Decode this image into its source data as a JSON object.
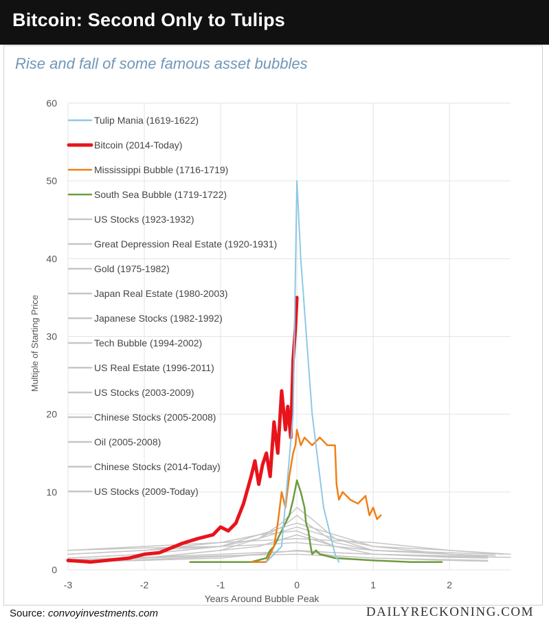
{
  "header": {
    "title": "Bitcoin: Second Only to Tulips"
  },
  "subtitle": "Rise and fall of some famous asset bubbles",
  "footer": {
    "source_label": "Source:",
    "source_value": "convoyinvestments.com",
    "brand": "DAILYRECKONING.COM"
  },
  "chart_data": {
    "type": "line",
    "title": "Bitcoin: Second Only to Tulips",
    "subtitle": "Rise and fall of some famous asset bubbles",
    "xlabel": "Years Around Bubble Peak",
    "ylabel": "Multiple of Starting Price",
    "xlim": [
      -3,
      2.8
    ],
    "ylim": [
      0,
      60
    ],
    "xticks": [
      -3,
      -2,
      -1,
      0,
      1,
      2
    ],
    "yticks": [
      0,
      10,
      20,
      30,
      40,
      50,
      60
    ],
    "grid": true,
    "legend_position": "top-left",
    "series": [
      {
        "name": "Tulip Mania (1619-1622)",
        "color": "#8ec8e6",
        "width": 2,
        "x": [
          -0.4,
          -0.2,
          -0.05,
          0.0,
          0.05,
          0.2,
          0.35,
          0.5,
          0.55
        ],
        "y": [
          1,
          3,
          20,
          50,
          40,
          20,
          8,
          2,
          1
        ]
      },
      {
        "name": "Bitcoin (2014-Today)",
        "color": "#e8141b",
        "width": 5,
        "x": [
          -3.0,
          -2.7,
          -2.4,
          -2.2,
          -2.0,
          -1.8,
          -1.6,
          -1.5,
          -1.3,
          -1.1,
          -1.0,
          -0.9,
          -0.8,
          -0.7,
          -0.6,
          -0.55,
          -0.5,
          -0.45,
          -0.4,
          -0.35,
          -0.3,
          -0.25,
          -0.2,
          -0.15,
          -0.12,
          -0.08,
          -0.05,
          -0.02,
          0.0
        ],
        "y": [
          1.2,
          1.0,
          1.3,
          1.5,
          2.0,
          2.2,
          3.0,
          3.4,
          4.0,
          4.5,
          5.5,
          5.0,
          6.0,
          8.5,
          12.0,
          14.0,
          11.0,
          13.5,
          15.0,
          12.0,
          19.0,
          15.0,
          23.0,
          18.0,
          21.0,
          17.0,
          27.0,
          31.0,
          35.0
        ]
      },
      {
        "name": "Mississippi Bubble (1716-1719)",
        "color": "#f07f17",
        "width": 2.5,
        "x": [
          -0.6,
          -0.4,
          -0.3,
          -0.25,
          -0.2,
          -0.15,
          -0.1,
          -0.05,
          -0.02,
          0.0,
          0.05,
          0.1,
          0.2,
          0.3,
          0.4,
          0.5,
          0.52,
          0.55,
          0.6,
          0.7,
          0.8,
          0.9,
          0.95,
          1.0,
          1.05,
          1.1
        ],
        "y": [
          1,
          1,
          3,
          6,
          10,
          8,
          12,
          15,
          16,
          18,
          16,
          17,
          16,
          17,
          16,
          16,
          11,
          9,
          10,
          9,
          8.5,
          9.5,
          7,
          8,
          6.5,
          7
        ]
      },
      {
        "name": "South Sea Bubble (1719-1722)",
        "color": "#6d9a3c",
        "width": 2.5,
        "x": [
          -1.4,
          -0.6,
          -0.4,
          -0.35,
          -0.3,
          -0.25,
          -0.2,
          -0.15,
          -0.1,
          -0.05,
          0.0,
          0.05,
          0.1,
          0.12,
          0.15,
          0.18,
          0.2,
          0.25,
          0.3,
          0.5,
          1.0,
          1.5,
          1.9
        ],
        "y": [
          1,
          1,
          1.5,
          2.5,
          3,
          4,
          5,
          6,
          7,
          9,
          11.5,
          10,
          8,
          6,
          5,
          3,
          2,
          2.5,
          2,
          1.5,
          1.2,
          1.0,
          1.0
        ]
      },
      {
        "name": "US Stocks (1923-1932)",
        "color": "#c6c6c6",
        "width": 1.5,
        "x": [
          -3,
          -2,
          -1,
          -0.5,
          0,
          0.5,
          1,
          2,
          2.5
        ],
        "y": [
          2.0,
          2.5,
          3.5,
          4.5,
          5.0,
          3.0,
          2.0,
          1.6,
          1.5
        ]
      },
      {
        "name": "Great Depression Real Estate (1920-1931)",
        "color": "#c6c6c6",
        "width": 1.5,
        "x": [
          -3,
          -2,
          -1,
          -0.5,
          0,
          0.5,
          1,
          2,
          2.6
        ],
        "y": [
          2.5,
          2.8,
          3.0,
          3.2,
          3.5,
          3.0,
          2.5,
          2.2,
          2.0
        ]
      },
      {
        "name": "Gold (1975-1982)",
        "color": "#c6c6c6",
        "width": 1.5,
        "x": [
          -3,
          -2,
          -1,
          -0.5,
          -0.2,
          0,
          0.2,
          0.5,
          1,
          2,
          2.7
        ],
        "y": [
          1.5,
          2.0,
          3.0,
          4.0,
          6.0,
          8.0,
          6.5,
          4.0,
          3.0,
          2.5,
          2.0
        ]
      },
      {
        "name": "Japan Real Estate (1980-2003)",
        "color": "#c6c6c6",
        "width": 1.5,
        "x": [
          -3,
          -2,
          -1,
          0,
          1,
          2,
          2.8
        ],
        "y": [
          2.5,
          3.0,
          3.5,
          4.0,
          3.5,
          2.5,
          2.0
        ]
      },
      {
        "name": "Japanese Stocks (1982-1992)",
        "color": "#c6c6c6",
        "width": 1.5,
        "x": [
          -3,
          -2,
          -1,
          -0.5,
          0,
          0.5,
          1,
          2,
          2.6
        ],
        "y": [
          2.0,
          2.5,
          3.0,
          4.5,
          6.0,
          4.5,
          3.0,
          2.0,
          1.8
        ]
      },
      {
        "name": "Tech Bubble (1994-2002)",
        "color": "#c6c6c6",
        "width": 1.5,
        "x": [
          -3,
          -2,
          -1,
          -0.5,
          0,
          0.5,
          1,
          2,
          2.5
        ],
        "y": [
          1.5,
          2.0,
          3.0,
          4.0,
          5.5,
          4.0,
          2.5,
          2.0,
          1.8
        ]
      },
      {
        "name": "US Real Estate (1996-2011)",
        "color": "#c6c6c6",
        "width": 1.5,
        "x": [
          -3,
          -2,
          -1,
          0,
          1,
          2,
          2.8
        ],
        "y": [
          1.3,
          1.6,
          2.0,
          2.4,
          2.0,
          1.7,
          1.6
        ]
      },
      {
        "name": "US Stocks (2003-2009)",
        "color": "#c6c6c6",
        "width": 1.5,
        "x": [
          -3,
          -2,
          -1,
          0,
          1,
          2,
          2.5
        ],
        "y": [
          1.2,
          1.5,
          1.8,
          2.0,
          1.5,
          1.2,
          1.1
        ]
      },
      {
        "name": "Chinese Stocks (2005-2008)",
        "color": "#c6c6c6",
        "width": 1.5,
        "x": [
          -3,
          -2,
          -1,
          -0.5,
          -0.2,
          0,
          0.2,
          0.5,
          1,
          2,
          2.4
        ],
        "y": [
          1.0,
          1.5,
          2.5,
          4.0,
          5.5,
          7.0,
          5.5,
          3.5,
          2.5,
          2.0,
          1.8
        ]
      },
      {
        "name": "Oil (2005-2008)",
        "color": "#c6c6c6",
        "width": 1.5,
        "x": [
          -3,
          -2,
          -1,
          -0.5,
          0,
          0.5,
          1,
          2,
          2.5
        ],
        "y": [
          1.2,
          1.5,
          2.5,
          3.0,
          4.5,
          3.0,
          2.5,
          2.0,
          1.8
        ]
      },
      {
        "name": "Chinese Stocks (2014-Today)",
        "color": "#c6c6c6",
        "width": 1.5,
        "x": [
          -3,
          -2,
          -1,
          -0.5,
          0,
          0.5,
          1,
          2,
          2.5
        ],
        "y": [
          1.0,
          1.2,
          1.5,
          2.0,
          2.5,
          1.8,
          1.5,
          1.3,
          1.2
        ]
      },
      {
        "name": "US Stocks (2009-Today)",
        "color": "#c6c6c6",
        "width": 1.5,
        "x": [
          -3,
          -2,
          -1,
          -0.5,
          0,
          0.5,
          1,
          2,
          2.5
        ],
        "y": [
          1.0,
          1.3,
          1.7,
          2.0,
          2.5,
          2.2,
          2.0,
          1.8,
          1.7
        ]
      }
    ]
  }
}
